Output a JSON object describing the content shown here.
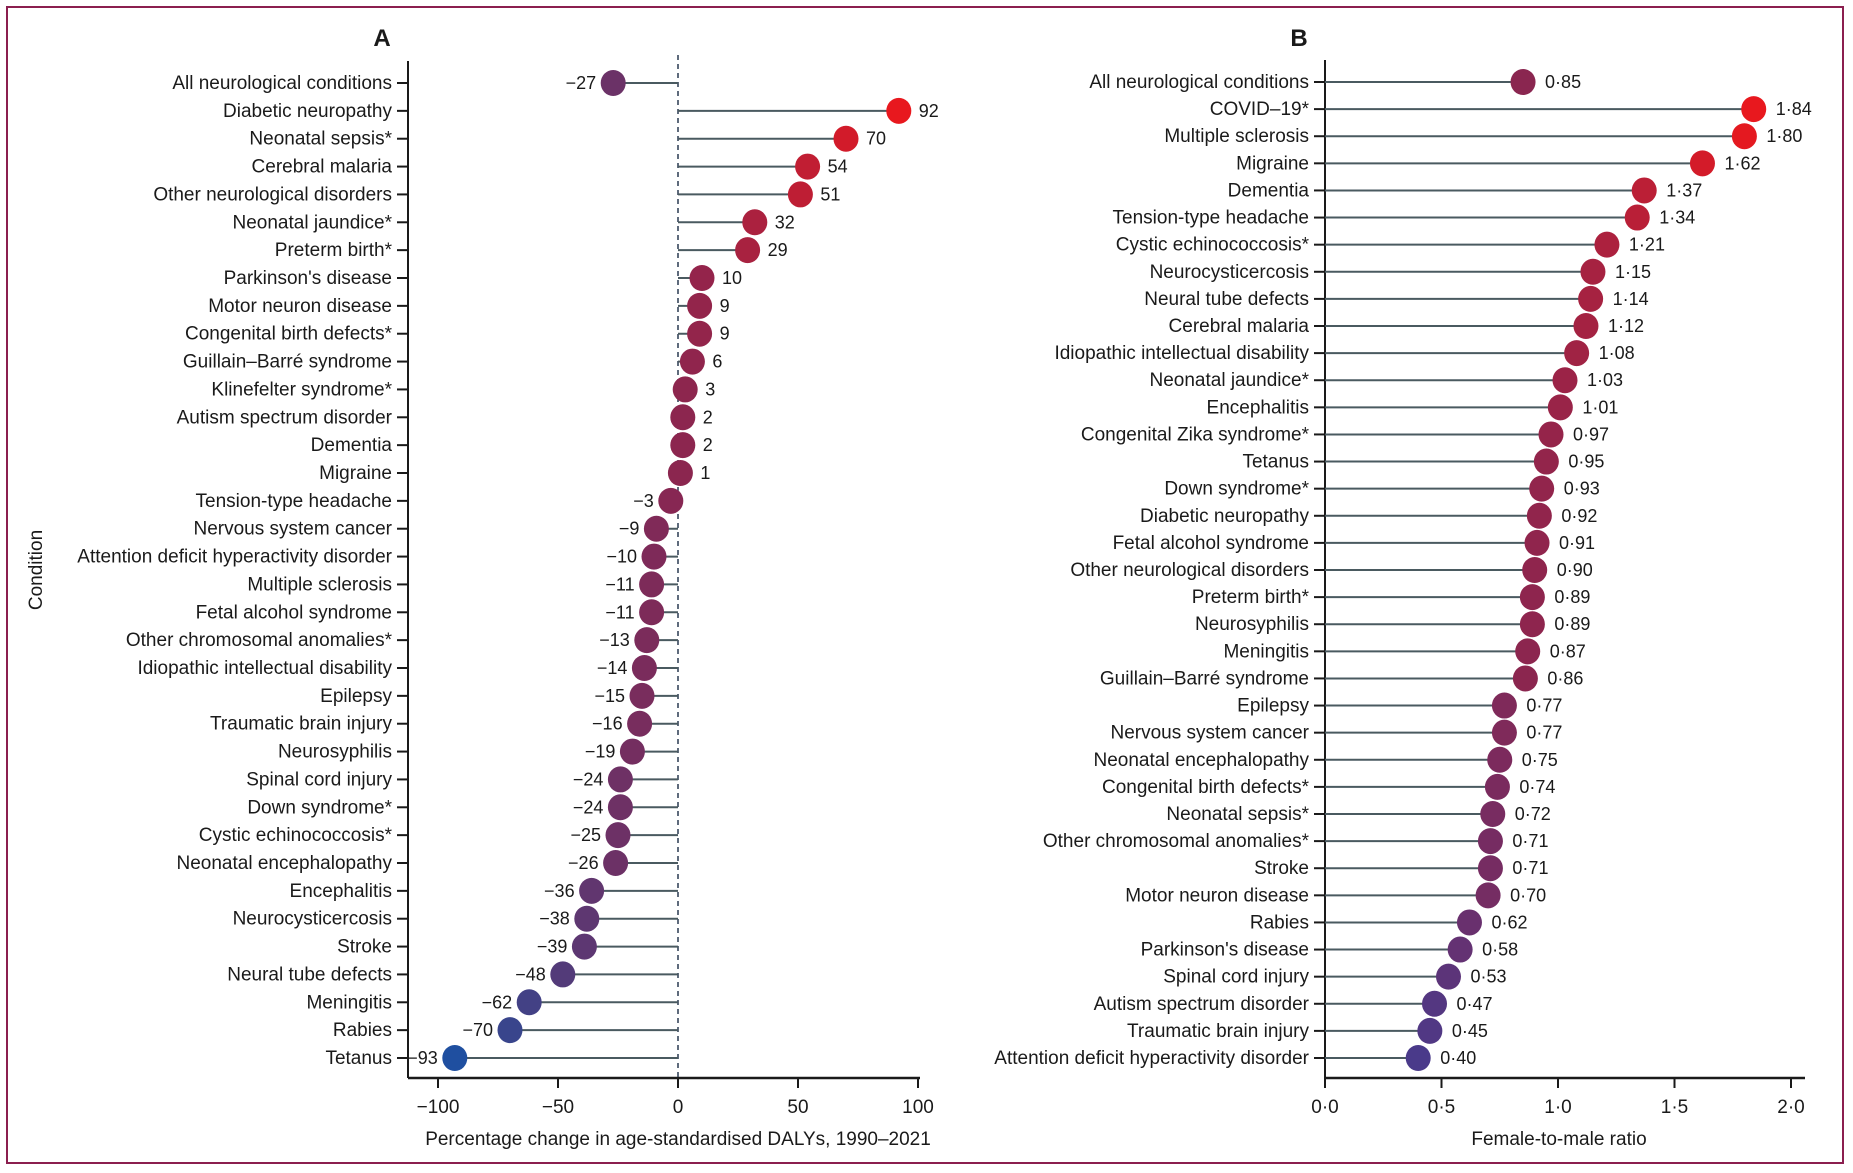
{
  "chart_data": [
    {
      "type": "scatter",
      "subtype": "lollipop",
      "panel": "A",
      "title": "A",
      "xlabel": "Percentage change in age-standardised DALYs, 1990–2021",
      "ylabel": "Condition",
      "xlim": [
        -110,
        105
      ],
      "xticks": [
        -100,
        -50,
        0,
        50,
        100
      ],
      "xtick_labels": [
        "−100",
        "−50",
        "0",
        "50",
        "100"
      ],
      "reference_line": 0,
      "categories": [
        "All neurological conditions",
        "Diabetic neuropathy",
        "Neonatal sepsis*",
        "Cerebral malaria",
        "Other neurological disorders",
        "Neonatal jaundice*",
        "Preterm birth*",
        "Parkinson's disease",
        "Motor neuron disease",
        "Congenital birth defects*",
        "Guillain–Barré syndrome",
        "Klinefelter syndrome*",
        "Autism spectrum disorder",
        "Dementia",
        "Migraine",
        "Tension-type headache",
        "Nervous system cancer",
        "Attention deficit hyperactivity disorder",
        "Multiple sclerosis",
        "Fetal alcohol syndrome",
        "Other chromosomal anomalies*",
        "Idiopathic intellectual disability",
        "Epilepsy",
        "Traumatic brain injury",
        "Neurosyphilis",
        "Spinal cord injury",
        "Down syndrome*",
        "Cystic echinococcosis*",
        "Neonatal encephalopathy",
        "Encephalitis",
        "Neurocysticercosis",
        "Stroke",
        "Neural tube defects",
        "Meningitis",
        "Rabies",
        "Tetanus"
      ],
      "values": [
        -27,
        92,
        70,
        54,
        51,
        32,
        29,
        10,
        9,
        9,
        6,
        3,
        2,
        2,
        1,
        -3,
        -9,
        -10,
        -11,
        -11,
        -13,
        -14,
        -15,
        -16,
        -19,
        -24,
        -24,
        -25,
        -26,
        -36,
        -38,
        -39,
        -48,
        -62,
        -70,
        -93
      ],
      "value_labels": [
        "−27",
        "92",
        "70",
        "54",
        "51",
        "32",
        "29",
        "10",
        "9",
        "9",
        "6",
        "3",
        "2",
        "2",
        "1",
        "−3",
        "−9",
        "−10",
        "−11",
        "−11",
        "−13",
        "−14",
        "−15",
        "−16",
        "−19",
        "−24",
        "−24",
        "−25",
        "−26",
        "−36",
        "−38",
        "−39",
        "−48",
        "−62",
        "−70",
        "−93"
      ],
      "color_scale": {
        "low": "#1f4fa0",
        "mid": "#8a2650",
        "high": "#e8181e"
      }
    },
    {
      "type": "scatter",
      "subtype": "lollipop",
      "panel": "B",
      "title": "B",
      "xlabel": "Female-to-male ratio",
      "ylabel": "",
      "xlim": [
        0,
        2.05
      ],
      "xticks": [
        0,
        0.5,
        1.0,
        1.5,
        2.0
      ],
      "xtick_labels": [
        "0·0",
        "0·5",
        "1·0",
        "1·5",
        "2·0"
      ],
      "categories": [
        "All neurological conditions",
        "COVID–19*",
        "Multiple sclerosis",
        "Migraine",
        "Dementia",
        "Tension-type headache",
        "Cystic echinococcosis*",
        "Neurocysticercosis",
        "Neural tube defects",
        "Cerebral malaria",
        "Idiopathic intellectual disability",
        "Neonatal jaundice*",
        "Encephalitis",
        "Congenital Zika syndrome*",
        "Tetanus",
        "Down syndrome*",
        "Diabetic neuropathy",
        "Fetal alcohol syndrome",
        "Other neurological disorders",
        "Preterm birth*",
        "Neurosyphilis",
        "Meningitis",
        "Guillain–Barré syndrome",
        "Epilepsy",
        "Nervous system cancer",
        "Neonatal encephalopathy",
        "Congenital birth defects*",
        "Neonatal sepsis*",
        "Other chromosomal anomalies*",
        "Stroke",
        "Motor neuron disease",
        "Rabies",
        "Parkinson's disease",
        "Spinal cord injury",
        "Autism spectrum disorder",
        "Traumatic brain injury",
        "Attention deficit hyperactivity disorder"
      ],
      "values": [
        0.85,
        1.84,
        1.8,
        1.62,
        1.37,
        1.34,
        1.21,
        1.15,
        1.14,
        1.12,
        1.08,
        1.03,
        1.01,
        0.97,
        0.95,
        0.93,
        0.92,
        0.91,
        0.9,
        0.89,
        0.89,
        0.87,
        0.86,
        0.77,
        0.77,
        0.75,
        0.74,
        0.72,
        0.71,
        0.71,
        0.7,
        0.62,
        0.58,
        0.53,
        0.47,
        0.45,
        0.4
      ],
      "value_labels": [
        "0·85",
        "1·84",
        "1·80",
        "1·62",
        "1·37",
        "1·34",
        "1·21",
        "1·15",
        "1·14",
        "1·12",
        "1·08",
        "1·03",
        "1·01",
        "0·97",
        "0·95",
        "0·93",
        "0·92",
        "0·91",
        "0·90",
        "0·89",
        "0·89",
        "0·87",
        "0·86",
        "0·77",
        "0·77",
        "0·75",
        "0·74",
        "0·72",
        "0·71",
        "0·71",
        "0·70",
        "0·62",
        "0·58",
        "0·53",
        "0·47",
        "0·45",
        "0·40"
      ],
      "color_scale": {
        "low": "#4a3a8a",
        "mid": "#8a2650",
        "high": "#e8181e"
      }
    }
  ],
  "colors": {
    "frame": "#8b1f4f",
    "stem": "#4a5a60",
    "axis": "#1a1a1a"
  }
}
